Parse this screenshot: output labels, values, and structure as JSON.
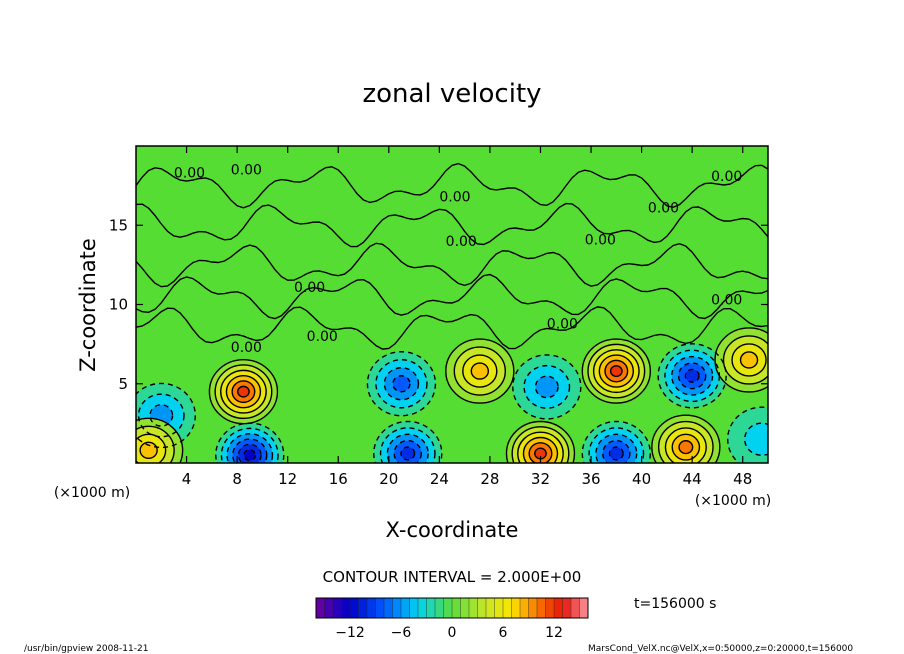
{
  "chart_data": {
    "type": "heatmap",
    "title": "zonal velocity",
    "xlabel": "X-coordinate",
    "ylabel": "Z-coordinate",
    "x_unit": "(×1000 m)",
    "z_unit": "(×1000 m)",
    "xlim": [
      0,
      50
    ],
    "ylim": [
      0,
      20
    ],
    "x_ticks": [
      4,
      8,
      12,
      16,
      20,
      24,
      28,
      32,
      36,
      40,
      44,
      48
    ],
    "y_ticks": [
      5,
      10,
      15
    ],
    "contour_interval_text": "CONTOUR INTERVAL = 2.000E+00",
    "contour_label": "0.00",
    "time_text": "t=156000 s",
    "colorbar": {
      "min": -16,
      "max": 16,
      "ticks": [
        -12,
        -6,
        0,
        6,
        12
      ]
    },
    "features": [
      {
        "x": 8.5,
        "z": 4.5,
        "value": 11
      },
      {
        "x": 9.0,
        "z": 0.5,
        "value": -12
      },
      {
        "x": 2.0,
        "z": 3.0,
        "value": -6
      },
      {
        "x": 1.0,
        "z": 0.8,
        "value": 7
      },
      {
        "x": 21.0,
        "z": 5.0,
        "value": -8
      },
      {
        "x": 21.5,
        "z": 0.6,
        "value": -10
      },
      {
        "x": 27.2,
        "z": 5.8,
        "value": 8
      },
      {
        "x": 32.0,
        "z": 0.6,
        "value": 11
      },
      {
        "x": 32.5,
        "z": 4.8,
        "value": -6
      },
      {
        "x": 38.0,
        "z": 5.8,
        "value": 11
      },
      {
        "x": 38.0,
        "z": 0.6,
        "value": -10
      },
      {
        "x": 44.0,
        "z": 5.5,
        "value": -10
      },
      {
        "x": 43.5,
        "z": 1.0,
        "value": 9
      },
      {
        "x": 48.5,
        "z": 6.5,
        "value": 8
      },
      {
        "x": 49.5,
        "z": 1.5,
        "value": -4
      }
    ]
  },
  "footer": {
    "left": "/usr/bin/gpview   2008-11-21",
    "right": "MarsCond_VelX.nc@VelX,x=0:50000,z=0:20000,t=156000"
  }
}
